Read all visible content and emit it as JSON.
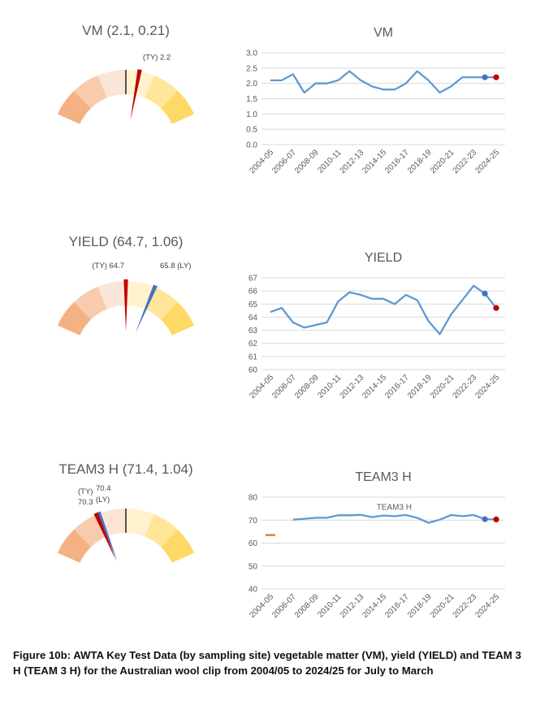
{
  "caption": "Figure 10b: AWTA Key Test Data (by sampling site) vegetable matter (VM), yield (YIELD) and TEAM 3 H (TEAM 3 H) for the Australian wool clip from 2004/05 to 2024/25 for July to March",
  "colors": {
    "line": "#5b9bd5",
    "ty_marker": "#c00000",
    "ly_marker": "#4472c4",
    "orange_line": "#ed7d31",
    "band_dark_orange": "#f4b183",
    "band_light_orange": "#f8cbad",
    "band_lightest_orange": "#fbe5d6",
    "band_lightest_yellow": "#fff2cc",
    "band_light_yellow": "#ffe699",
    "band_dark_yellow": "#ffd966"
  },
  "chart_data": [
    {
      "type": "gauge",
      "title": "VM (2.1, 0.21)",
      "center": 2.1,
      "sd": 0.21,
      "ty": 2.2,
      "ty_label": "(TY) 2.2",
      "ly": 2.2
    },
    {
      "type": "line",
      "title": "VM",
      "categories": [
        "2004-05",
        "2005-06",
        "2006-07",
        "2007-08",
        "2008-09",
        "2009-10",
        "2010-11",
        "2011-12",
        "2012-13",
        "2013-14",
        "2014-15",
        "2015-16",
        "2016-17",
        "2017-18",
        "2018-19",
        "2019-20",
        "2020-21",
        "2021-22",
        "2022-23",
        "2023-24",
        "2024-25"
      ],
      "tick_labels": [
        "2004-05",
        "2006-07",
        "2008-09",
        "2010-11",
        "2012-13",
        "2014-15",
        "2016-17",
        "2018-19",
        "2020-21",
        "2022-23",
        "2024-25"
      ],
      "values": [
        2.1,
        2.1,
        2.3,
        1.7,
        2.0,
        2.0,
        2.1,
        2.4,
        2.1,
        1.9,
        1.8,
        1.8,
        2.0,
        2.4,
        2.1,
        1.7,
        1.9,
        2.2,
        2.2,
        2.2,
        2.2
      ],
      "ly_point": [
        19,
        2.2
      ],
      "ty_point": [
        20,
        2.2
      ],
      "yticks": [
        "0.0",
        "0.5",
        "1.0",
        "1.5",
        "2.0",
        "2.5",
        "3.0"
      ],
      "ylim": [
        0,
        3
      ]
    },
    {
      "type": "gauge",
      "title": "YIELD (64.7, 1.06)",
      "center": 64.7,
      "sd": 1.06,
      "ty": 64.7,
      "ty_label": "(TY) 64.7",
      "ly": 65.8,
      "ly_label": "65.8 (LY)"
    },
    {
      "type": "line",
      "title": "YIELD",
      "categories": [
        "2004-05",
        "2005-06",
        "2006-07",
        "2007-08",
        "2008-09",
        "2009-10",
        "2010-11",
        "2011-12",
        "2012-13",
        "2013-14",
        "2014-15",
        "2015-16",
        "2016-17",
        "2017-18",
        "2018-19",
        "2019-20",
        "2020-21",
        "2021-22",
        "2022-23",
        "2023-24",
        "2024-25"
      ],
      "tick_labels": [
        "2004-05",
        "2006-07",
        "2008-09",
        "2010-11",
        "2012-13",
        "2014-15",
        "2016-17",
        "2018-19",
        "2020-21",
        "2022-23",
        "2024-25"
      ],
      "values": [
        64.4,
        64.7,
        63.6,
        63.2,
        63.4,
        63.6,
        65.2,
        65.9,
        65.7,
        65.4,
        65.4,
        65.0,
        65.7,
        65.3,
        63.7,
        62.7,
        64.2,
        65.3,
        66.4,
        65.8,
        64.7
      ],
      "ly_point": [
        19,
        65.8
      ],
      "ty_point": [
        20,
        64.7
      ],
      "yticks": [
        "60",
        "61",
        "62",
        "63",
        "64",
        "65",
        "66",
        "67"
      ],
      "ylim": [
        60,
        67
      ]
    },
    {
      "type": "gauge",
      "title": "TEAM3 H (71.4, 1.04)",
      "center": 71.4,
      "sd": 1.04,
      "ty": 70.3,
      "ty_label_top": "(TY)",
      "ty_label_bottom": "70.3",
      "ly": 70.4,
      "ly_label_top": "70.4",
      "ly_label_bottom": "(LY)"
    },
    {
      "type": "line",
      "title": "TEAM3 H",
      "series_label": "TEAM3 H",
      "categories": [
        "2004-05",
        "2005-06",
        "2006-07",
        "2007-08",
        "2008-09",
        "2009-10",
        "2010-11",
        "2011-12",
        "2012-13",
        "2013-14",
        "2014-15",
        "2015-16",
        "2016-17",
        "2017-18",
        "2018-19",
        "2019-20",
        "2020-21",
        "2021-22",
        "2022-23",
        "2023-24",
        "2024-25"
      ],
      "tick_labels": [
        "2004-05",
        "2006-07",
        "2008-09",
        "2010-11",
        "2012-13",
        "2014-15",
        "2016-17",
        "2018-19",
        "2020-21",
        "2022-23",
        "2024-25"
      ],
      "values": [
        null,
        null,
        70.2,
        70.6,
        71.0,
        71.0,
        72.1,
        72.1,
        72.3,
        71.3,
        72.0,
        71.7,
        72.2,
        71.0,
        68.8,
        70.2,
        72.2,
        71.7,
        72.2,
        70.4,
        70.3
      ],
      "orange_segment": [
        63.5,
        63.5
      ],
      "ly_point": [
        19,
        70.4
      ],
      "ty_point": [
        20,
        70.3
      ],
      "yticks": [
        "40",
        "50",
        "60",
        "70",
        "80"
      ],
      "ylim": [
        40,
        80
      ]
    }
  ]
}
